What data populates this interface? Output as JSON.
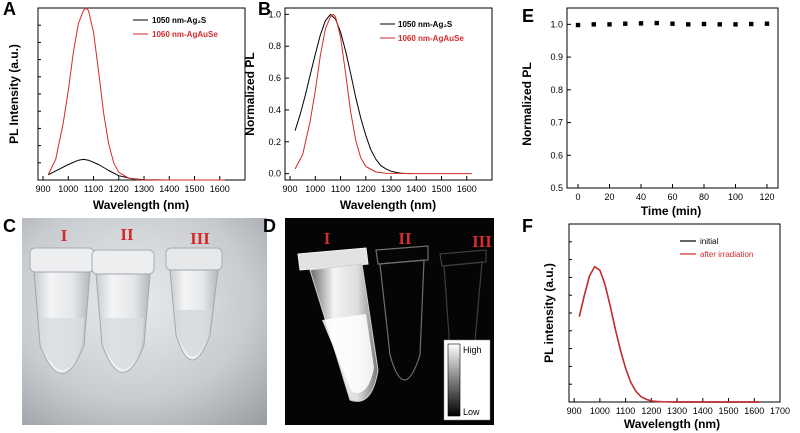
{
  "chart_data": [
    {
      "panel": "A",
      "type": "line",
      "xlabel": "Wavelength (nm)",
      "ylabel": "PL Intensity (a.u.)",
      "xlim": [
        880,
        1700
      ],
      "ylim": [
        0,
        1.0
      ],
      "xticks": [
        900,
        1000,
        1100,
        1200,
        1300,
        1400,
        1500,
        1600
      ],
      "yticks_labeled": false,
      "legend": "top-right",
      "series": [
        {
          "name": "1050 nm-Ag₂S",
          "color": "#000000",
          "x": [
            920,
            960,
            1000,
            1040,
            1060,
            1080,
            1120,
            1160,
            1200,
            1250,
            1300,
            1400,
            1500,
            1620
          ],
          "y": [
            0.03,
            0.06,
            0.09,
            0.115,
            0.12,
            0.115,
            0.09,
            0.055,
            0.025,
            0.008,
            0.002,
            0.0,
            0.0,
            0.0
          ]
        },
        {
          "name": "1060 nm-AgAuSe",
          "color": "#d42b2b",
          "x": [
            920,
            950,
            980,
            1000,
            1020,
            1040,
            1060,
            1070,
            1080,
            1100,
            1120,
            1140,
            1160,
            1180,
            1200,
            1240,
            1280,
            1400,
            1500,
            1620
          ],
          "y": [
            0.03,
            0.12,
            0.33,
            0.52,
            0.74,
            0.91,
            0.985,
            1.0,
            0.985,
            0.86,
            0.63,
            0.39,
            0.21,
            0.1,
            0.045,
            0.01,
            0.002,
            0.0,
            0.0,
            0.0
          ]
        }
      ]
    },
    {
      "panel": "B",
      "type": "line",
      "xlabel": "Wavelength (nm)",
      "ylabel": "Normalized PL",
      "xlim": [
        880,
        1700
      ],
      "ylim": [
        -0.04,
        1.04
      ],
      "xticks": [
        900,
        1000,
        1100,
        1200,
        1300,
        1400,
        1500,
        1600
      ],
      "yticks": [
        0.0,
        0.2,
        0.4,
        0.6,
        0.8,
        1.0
      ],
      "ytick_labels": [
        "0.0",
        "0.2",
        "0.4",
        "0.6",
        "0.8",
        "1.0"
      ],
      "legend": "top-right",
      "series": [
        {
          "name": "1050 nm-Ag₂S",
          "color": "#000000",
          "x": [
            920,
            940,
            960,
            980,
            1000,
            1020,
            1040,
            1060,
            1080,
            1100,
            1120,
            1140,
            1160,
            1180,
            1200,
            1220,
            1240,
            1260,
            1280,
            1300,
            1320,
            1340,
            1360,
            1380
          ],
          "y": [
            0.27,
            0.37,
            0.49,
            0.62,
            0.75,
            0.87,
            0.96,
            1.0,
            0.97,
            0.89,
            0.77,
            0.63,
            0.48,
            0.35,
            0.24,
            0.15,
            0.09,
            0.05,
            0.03,
            0.015,
            0.008,
            0.003,
            0.001,
            0.0
          ]
        },
        {
          "name": "1060 nm-AgAuSe",
          "color": "#d42b2b",
          "x": [
            920,
            950,
            980,
            1000,
            1020,
            1040,
            1060,
            1070,
            1080,
            1100,
            1120,
            1140,
            1160,
            1180,
            1200,
            1240,
            1280,
            1400,
            1500,
            1620
          ],
          "y": [
            0.03,
            0.12,
            0.33,
            0.52,
            0.74,
            0.91,
            0.985,
            1.0,
            0.985,
            0.86,
            0.63,
            0.39,
            0.21,
            0.1,
            0.045,
            0.01,
            0.002,
            0.0,
            0.0,
            0.0
          ]
        }
      ]
    },
    {
      "panel": "E",
      "type": "scatter",
      "xlabel": "Time (min)",
      "ylabel": "Normalized PL",
      "xlim": [
        -7,
        127
      ],
      "ylim": [
        0.5,
        1.05
      ],
      "xticks": [
        0,
        20,
        40,
        60,
        80,
        100,
        120
      ],
      "yticks": [
        0.5,
        0.6,
        0.7,
        0.8,
        0.9,
        1.0
      ],
      "ytick_labels": [
        "0.5",
        "0.6",
        "0.7",
        "0.8",
        "0.9",
        "1.0"
      ],
      "series": [
        {
          "color": "#000000",
          "x": [
            0,
            10,
            20,
            30,
            40,
            50,
            60,
            70,
            80,
            90,
            100,
            110,
            120
          ],
          "y": [
            0.998,
            1.0,
            1.0,
            1.002,
            1.003,
            1.004,
            1.002,
            1.0,
            1.001,
            1.0,
            1.0,
            1.001,
            1.002
          ]
        }
      ]
    },
    {
      "panel": "F",
      "type": "line",
      "xlabel": "Wavelength (nm)",
      "ylabel": "PL intensity (a.u.)",
      "xlim": [
        880,
        1700
      ],
      "ylim": [
        0,
        1.0
      ],
      "xticks": [
        900,
        1000,
        1100,
        1200,
        1300,
        1400,
        1500,
        1600,
        1700
      ],
      "yticks_labeled": false,
      "legend": "top-right",
      "series": [
        {
          "name": "initial",
          "color": "#000000",
          "x": [
            920,
            940,
            960,
            980,
            1000,
            1020,
            1040,
            1060,
            1080,
            1100,
            1120,
            1140,
            1160,
            1180,
            1200,
            1220,
            1250,
            1300,
            1400,
            1500,
            1620
          ],
          "y": [
            0.48,
            0.6,
            0.71,
            0.76,
            0.74,
            0.66,
            0.54,
            0.41,
            0.29,
            0.19,
            0.11,
            0.06,
            0.03,
            0.015,
            0.006,
            0.003,
            0.001,
            0.0,
            0.0,
            0.0,
            0.0
          ]
        },
        {
          "name": "after irradiation",
          "color": "#d42b2b",
          "x": [
            920,
            940,
            960,
            980,
            1000,
            1020,
            1040,
            1060,
            1080,
            1100,
            1120,
            1140,
            1160,
            1180,
            1200,
            1220,
            1250,
            1300,
            1400,
            1500,
            1620
          ],
          "y": [
            0.48,
            0.6,
            0.71,
            0.76,
            0.74,
            0.66,
            0.54,
            0.41,
            0.29,
            0.19,
            0.11,
            0.06,
            0.03,
            0.015,
            0.006,
            0.003,
            0.001,
            0.0,
            0.0,
            0.0,
            0.0
          ]
        }
      ]
    }
  ],
  "photos": {
    "C": {
      "panel": "C",
      "labels": [
        "I",
        "II",
        "III"
      ]
    },
    "D": {
      "panel": "D",
      "labels": [
        "I",
        "II",
        "III"
      ],
      "scale_high": "High",
      "scale_low": "Low"
    }
  },
  "colors": {
    "red": "#d42b2b",
    "black": "#000000"
  }
}
